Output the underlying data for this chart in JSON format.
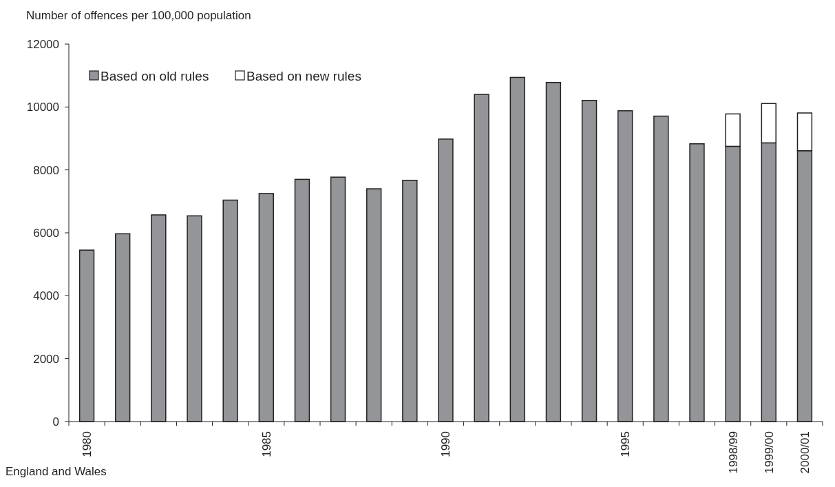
{
  "chart_data": {
    "type": "bar",
    "ylabel": "Number of offences per 100,000 population",
    "categories": [
      "1980",
      null,
      null,
      null,
      null,
      "1985",
      null,
      null,
      null,
      null,
      "1990",
      null,
      null,
      null,
      null,
      "1995",
      null,
      null,
      "1998/99",
      "1999/00",
      "2000/01"
    ],
    "series": [
      {
        "name": "Based on old rules",
        "color": "#939598",
        "values": [
          5450,
          5970,
          6570,
          6540,
          7040,
          7250,
          7700,
          7770,
          7400,
          7670,
          8980,
          10400,
          10940,
          10780,
          10210,
          9880,
          9710,
          8830,
          8750,
          8860,
          8610
        ]
      },
      {
        "name": "Based on new rules",
        "color": "#ffffff",
        "values": [
          null,
          null,
          null,
          null,
          null,
          null,
          null,
          null,
          null,
          null,
          null,
          null,
          null,
          null,
          null,
          null,
          null,
          null,
          1030,
          1250,
          1200
        ]
      }
    ],
    "stacked": true,
    "ylim": [
      0,
      12000
    ],
    "yticks": [
      0,
      2000,
      4000,
      6000,
      8000,
      10000,
      12000
    ],
    "grid": false,
    "legend": "top left",
    "annotations": [
      "England and Wales"
    ]
  }
}
